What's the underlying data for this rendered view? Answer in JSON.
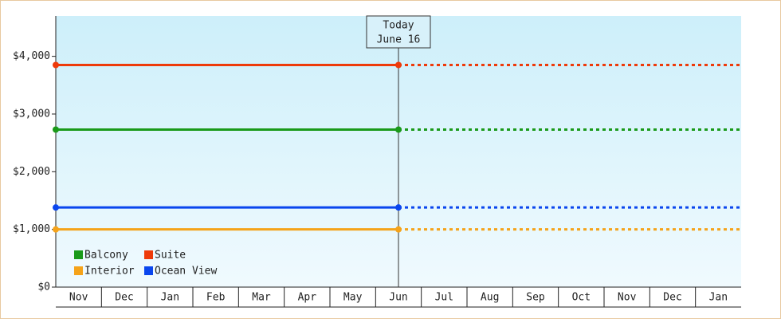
{
  "chart_data": {
    "type": "line",
    "categories": [
      "Nov",
      "Dec",
      "Jan",
      "Feb",
      "Mar",
      "Apr",
      "May",
      "Jun",
      "Jul",
      "Aug",
      "Sep",
      "Oct",
      "Nov",
      "Dec",
      "Jan"
    ],
    "series": [
      {
        "name": "Balcony",
        "color": "#1a9a1a",
        "value": 2730
      },
      {
        "name": "Suite",
        "color": "#ee3a0a",
        "value": 3850
      },
      {
        "name": "Interior",
        "color": "#f5a31a",
        "value": 1000
      },
      {
        "name": "Ocean View",
        "color": "#0a46ee",
        "value": 1380
      }
    ],
    "annotation": [
      "Today",
      "June 16"
    ],
    "ylim": [
      0,
      4700
    ],
    "yticks": [
      {
        "value": 0,
        "label": "$0"
      },
      {
        "value": 1000,
        "label": "$1,000"
      },
      {
        "value": 2000,
        "label": "$2,000"
      },
      {
        "value": 3000,
        "label": "$3,000"
      },
      {
        "value": 4000,
        "label": "$4,000"
      }
    ]
  }
}
